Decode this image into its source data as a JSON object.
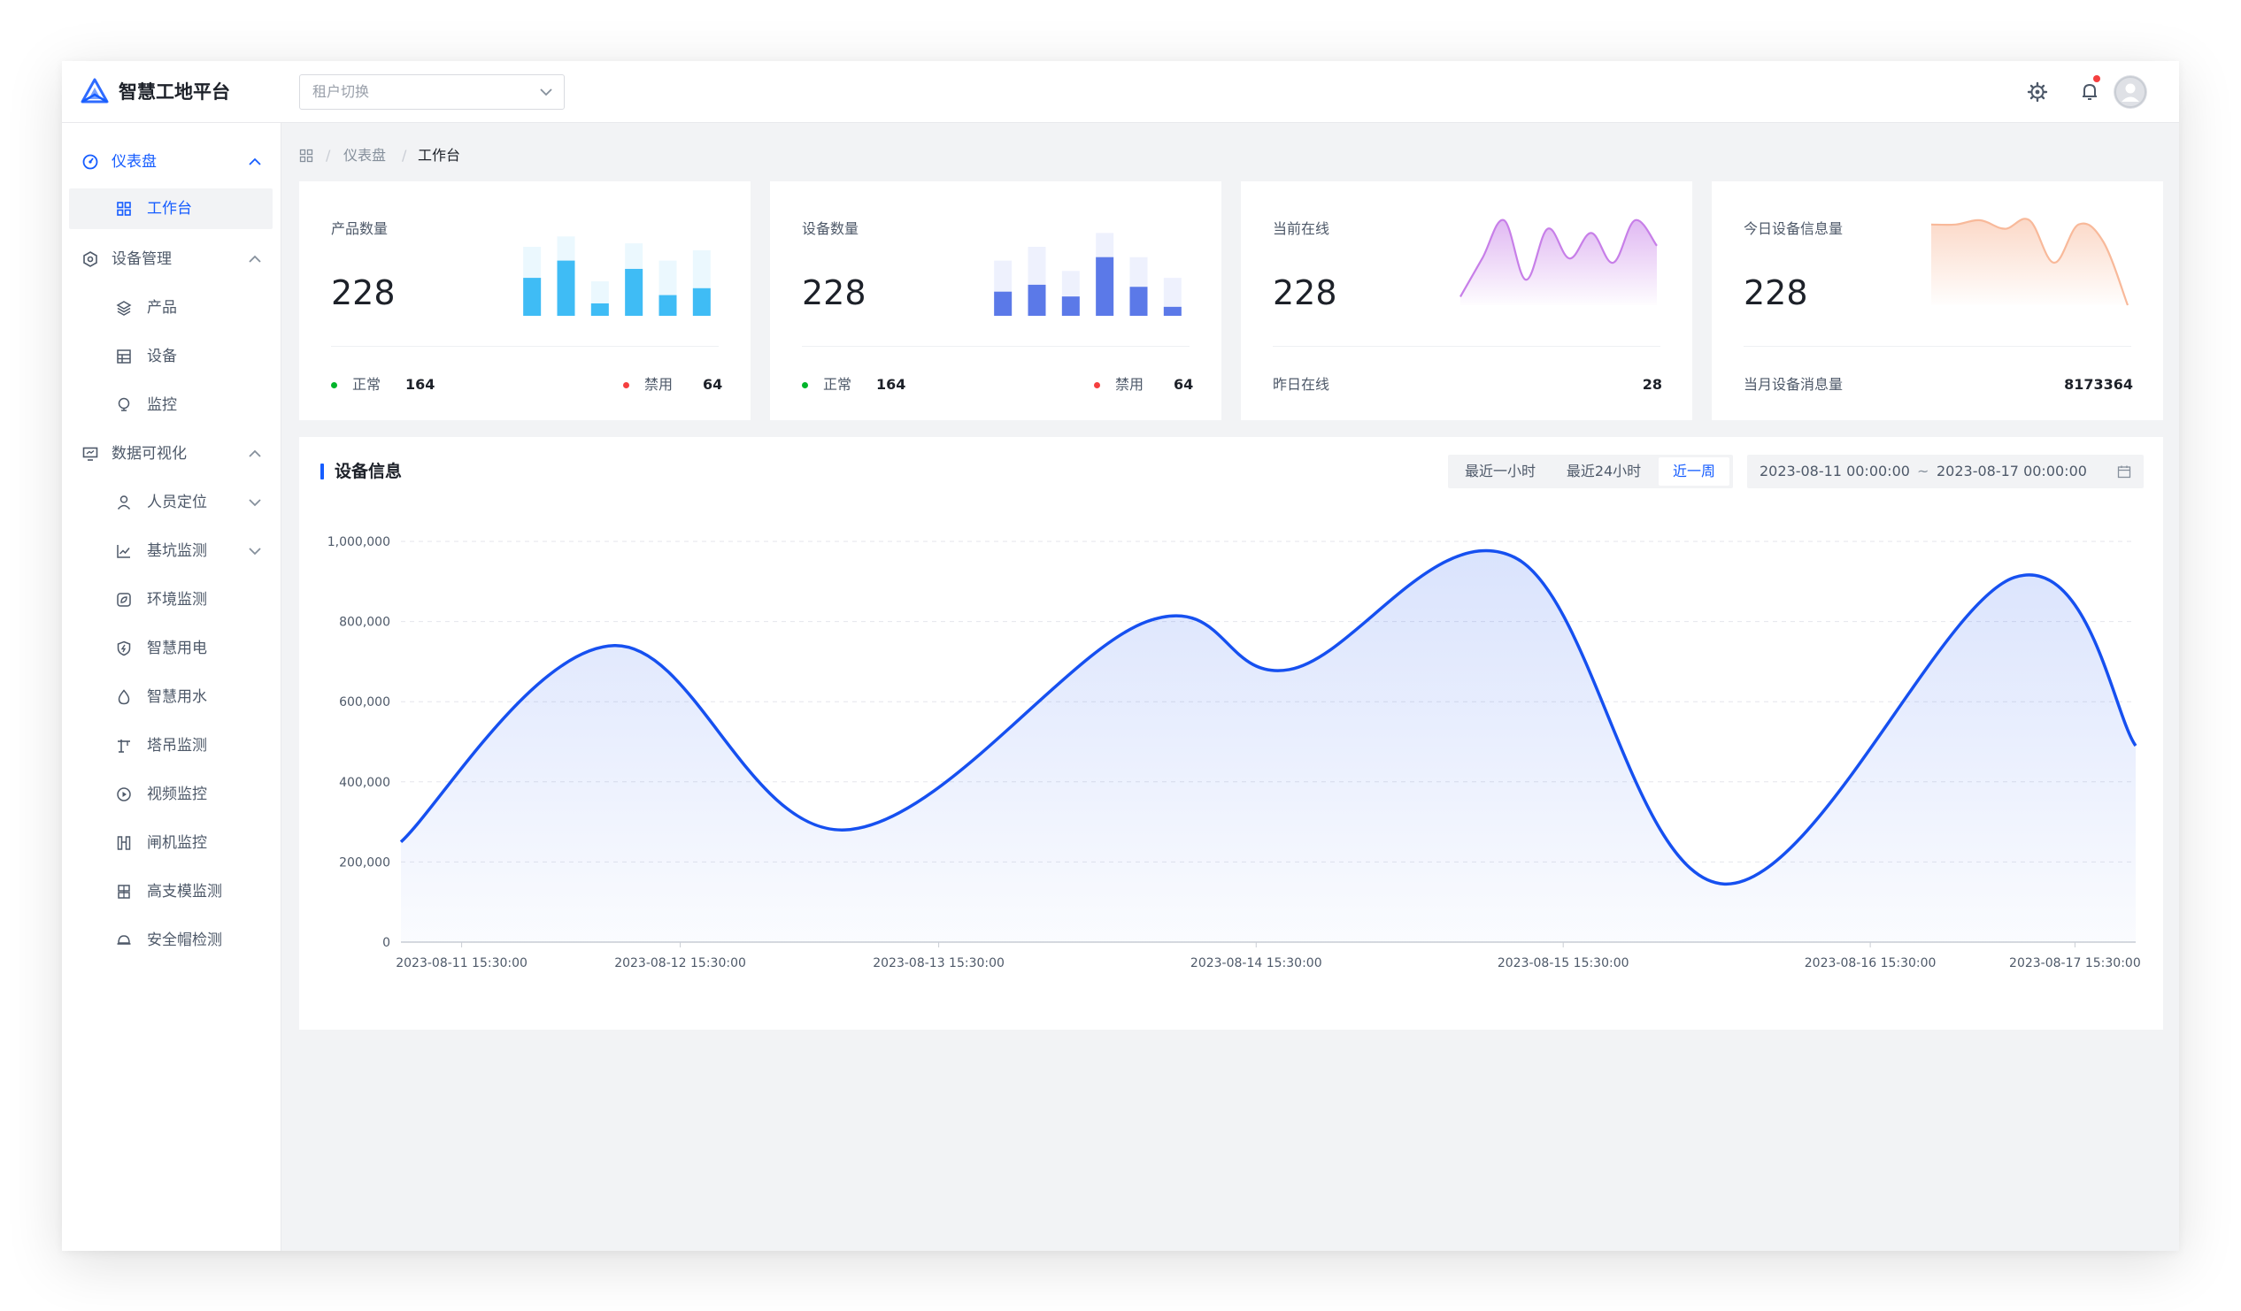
{
  "app": {
    "title": "智慧工地平台",
    "tenant_placeholder": "租户切换"
  },
  "header_icons": [
    "settings-icon",
    "bell-icon",
    "avatar-icon"
  ],
  "colors": {
    "primary": "#165dff",
    "bar_cyan": "#3fbcf5",
    "bar_indigo": "#5b79e8",
    "online_purple": "#c77fe8",
    "message_orange": "#f8b99a",
    "ok_green": "#00b42a",
    "disabled_red": "#f53f3f"
  },
  "sidebar": {
    "groups": [
      {
        "label": "仪表盘",
        "icon": "dashboard-icon",
        "expanded": true,
        "active": true,
        "items": [
          {
            "label": "工作台",
            "icon": "grid-icon",
            "active": true
          }
        ]
      },
      {
        "label": "设备管理",
        "icon": "device-icon",
        "expanded": true,
        "items": [
          {
            "label": "产品",
            "icon": "layers-icon"
          },
          {
            "label": "设备",
            "icon": "table-icon"
          },
          {
            "label": "监控",
            "icon": "monitor-bulb-icon"
          }
        ]
      },
      {
        "label": "数据可视化",
        "icon": "screen-icon",
        "expanded": true,
        "items": [
          {
            "label": "人员定位",
            "icon": "person-icon",
            "has_children": true
          },
          {
            "label": "基坑监测",
            "icon": "line-chart-icon",
            "has_children": true
          },
          {
            "label": "环境监测",
            "icon": "environment-icon"
          },
          {
            "label": "智慧用电",
            "icon": "electric-icon"
          },
          {
            "label": "智慧用水",
            "icon": "water-icon"
          },
          {
            "label": "塔吊监测",
            "icon": "crane-icon"
          },
          {
            "label": "视频监控",
            "icon": "video-icon"
          },
          {
            "label": "闸机监控",
            "icon": "gate-icon"
          },
          {
            "label": "高支模监测",
            "icon": "formwork-icon"
          },
          {
            "label": "安全帽检测",
            "icon": "helmet-icon"
          }
        ]
      }
    ]
  },
  "breadcrumb": {
    "home_icon": "grid-icon",
    "items": [
      "仪表盘",
      "工作台"
    ],
    "separator": "/"
  },
  "cards": [
    {
      "title": "产品数量",
      "value": "228",
      "foot": {
        "ok_label": "正常",
        "ok_value": "164",
        "off_label": "禁用",
        "off_value": "64"
      },
      "mini": {
        "type": "bar",
        "values": [
          0.55,
          0.8,
          0.18,
          0.68,
          0.3,
          0.4
        ],
        "totals": [
          1.0,
          1.15,
          0.5,
          1.05,
          0.8,
          0.95
        ],
        "color": "#3fbcf5"
      }
    },
    {
      "title": "设备数量",
      "value": "228",
      "foot": {
        "ok_label": "正常",
        "ok_value": "164",
        "off_label": "禁用",
        "off_value": "64"
      },
      "mini": {
        "type": "bar",
        "values": [
          0.35,
          0.45,
          0.28,
          0.85,
          0.42,
          0.13
        ],
        "totals": [
          0.8,
          1.0,
          0.65,
          1.2,
          0.85,
          0.55
        ],
        "color": "#5b79e8"
      }
    },
    {
      "title": "当前在线",
      "value": "228",
      "foot": {
        "label": "昨日在线",
        "value": "28"
      },
      "mini": {
        "type": "area",
        "values": [
          0.1,
          0.55,
          1.0,
          0.3,
          0.9,
          0.55,
          0.85,
          0.5,
          1.0,
          0.7
        ],
        "color": "#c77fe8"
      }
    },
    {
      "title": "今日设备信息量",
      "value": "228",
      "foot": {
        "label": "当月设备消息量",
        "value": "8173364"
      },
      "mini": {
        "type": "area",
        "values": [
          0.95,
          0.95,
          1.0,
          0.9,
          1.0,
          0.5,
          0.95,
          0.75,
          0.0
        ],
        "color": "#f8b99a"
      }
    }
  ],
  "panel": {
    "title": "设备信息",
    "ranges": [
      {
        "label": "最近一小时",
        "selected": false
      },
      {
        "label": "最近24小时",
        "selected": false
      },
      {
        "label": "近一周",
        "selected": true
      }
    ],
    "date_start": "2023-08-11 00:00:00",
    "date_sep": "~",
    "date_end": "2023-08-17 00:00:00",
    "calendar_icon": "calendar-icon"
  },
  "chart_data": {
    "type": "area",
    "title": "设备信息",
    "xlabel": "",
    "ylabel": "",
    "ylim": [
      0,
      1000000
    ],
    "grid": true,
    "smooth": true,
    "yticks": [
      "0",
      "200,000",
      "400,000",
      "600,000",
      "800,000",
      "1,000,000"
    ],
    "x_labels": [
      "2023-08-11 15:30:00",
      "2023-08-12 15:30:00",
      "2023-08-13 15:30:00",
      "2023-08-14 15:30:00",
      "2023-08-15 15:30:00",
      "2023-08-16 15:30:00",
      "2023-08-17 15:30:00"
    ],
    "series": [
      {
        "name": "",
        "points": [
          [
            0.0,
            250000
          ],
          [
            0.123,
            740000
          ],
          [
            0.256,
            280000
          ],
          [
            0.43,
            800000
          ],
          [
            0.512,
            680000
          ],
          [
            0.642,
            960000
          ],
          [
            0.763,
            145000
          ],
          [
            0.93,
            910000
          ],
          [
            1.0,
            490000
          ]
        ]
      }
    ],
    "x_label_positions": [
      0.035,
      0.161,
      0.31,
      0.493,
      0.67,
      0.847,
      0.965
    ],
    "color": "#1650f0"
  }
}
